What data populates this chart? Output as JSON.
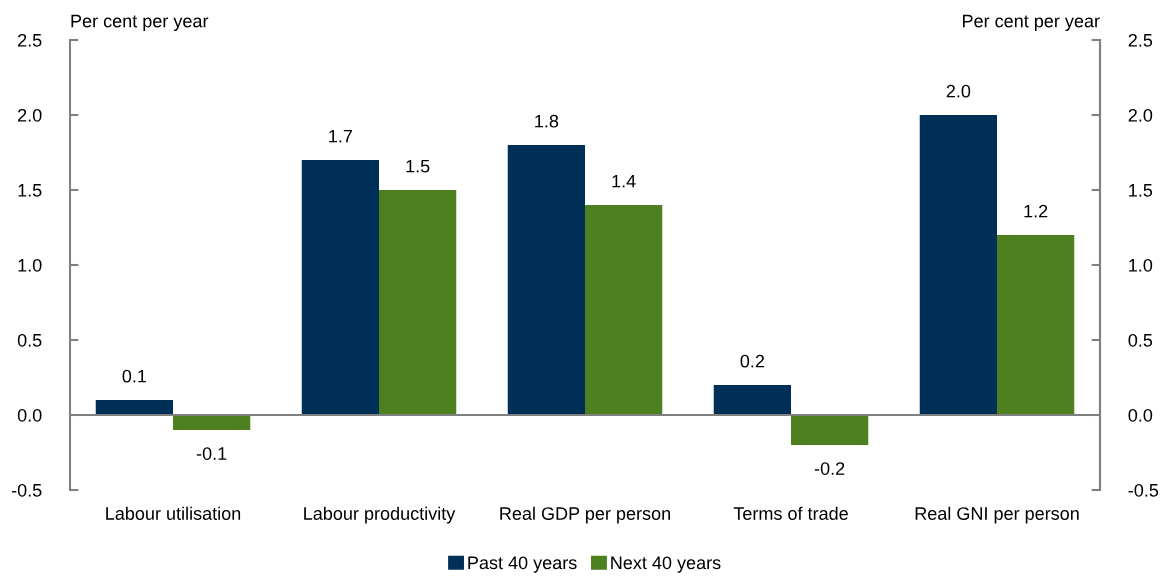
{
  "chart_data": {
    "type": "bar",
    "ylabel": "Per cent per year",
    "y2label": "Per cent per year",
    "categories": [
      "Labour utilisation",
      "Labour productivity",
      "Real GDP per person",
      "Terms of trade",
      "Real GNI per person"
    ],
    "series": [
      {
        "name": "Past 40 years",
        "color": "#003057",
        "values": [
          0.1,
          1.7,
          1.8,
          0.2,
          2.0
        ],
        "value_labels": [
          "0.1",
          "1.7",
          "1.8",
          "0.2",
          "2.0"
        ]
      },
      {
        "name": "Next 40 years",
        "color": "#4e8020",
        "values": [
          -0.1,
          1.5,
          1.4,
          -0.2,
          1.2
        ],
        "value_labels": [
          "-0.1",
          "1.5",
          "1.4",
          "-0.2",
          "1.2"
        ]
      }
    ],
    "ylim": [
      -0.5,
      2.5
    ],
    "yticks": [
      {
        "value": -0.5,
        "label": "-0.5"
      },
      {
        "value": 0,
        "label": "0.0"
      },
      {
        "value": 0.5,
        "label": "0.5"
      },
      {
        "value": 1,
        "label": "1.0"
      },
      {
        "value": 1.5,
        "label": "1.5"
      },
      {
        "value": 2,
        "label": "2.0"
      },
      {
        "value": 2.5,
        "label": "2.5"
      }
    ],
    "y2lim": [
      -0.5,
      2.5
    ],
    "y2ticks": [
      {
        "value": -0.5,
        "label": "-0.5"
      },
      {
        "value": 0,
        "label": "0.0"
      },
      {
        "value": 0.5,
        "label": "0.5"
      },
      {
        "value": 1,
        "label": "1.0"
      },
      {
        "value": 1.5,
        "label": "1.5"
      },
      {
        "value": 2,
        "label": "2.0"
      },
      {
        "value": 2.5,
        "label": "2.5"
      }
    ],
    "legend": "bottom"
  }
}
